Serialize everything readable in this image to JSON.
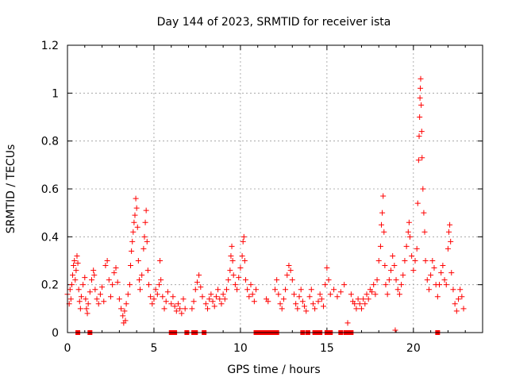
{
  "chart_data": {
    "type": "scatter",
    "title": "Day 144 of 2023, SRMTID for receiver ista",
    "xlabel": "GPS time / hours",
    "ylabel": "SRMTID / TECUs",
    "xlim": [
      0,
      24
    ],
    "ylim": [
      0,
      1.2
    ],
    "xticks": [
      0,
      5,
      10,
      15,
      20
    ],
    "yticks": [
      0,
      0.2,
      0.4,
      0.6,
      0.8,
      1,
      1.2
    ],
    "ytick_labels": [
      "0",
      "0.2",
      "0.4",
      "0.6",
      "0.8",
      "1",
      "1.2"
    ],
    "grid": true,
    "marker": "plus",
    "marker_color": "#ff0000",
    "series": [
      {
        "name": "SRMTID",
        "points": [
          [
            0.0,
            0.16
          ],
          [
            0.1,
            0.12
          ],
          [
            0.15,
            0.18
          ],
          [
            0.2,
            0.14
          ],
          [
            0.25,
            0.2
          ],
          [
            0.3,
            0.24
          ],
          [
            0.35,
            0.28
          ],
          [
            0.4,
            0.3
          ],
          [
            0.45,
            0.22
          ],
          [
            0.5,
            0.26
          ],
          [
            0.55,
            0.32
          ],
          [
            0.6,
            0.29
          ],
          [
            0.65,
            0.18
          ],
          [
            0.7,
            0.13
          ],
          [
            0.75,
            0.1
          ],
          [
            0.8,
            0.15
          ],
          [
            0.9,
            0.2
          ],
          [
            1.0,
            0.23
          ],
          [
            1.05,
            0.14
          ],
          [
            1.1,
            0.1
          ],
          [
            1.15,
            0.08
          ],
          [
            1.2,
            0.12
          ],
          [
            1.3,
            0.17
          ],
          [
            1.4,
            0.22
          ],
          [
            1.5,
            0.26
          ],
          [
            1.55,
            0.24
          ],
          [
            1.6,
            0.18
          ],
          [
            1.7,
            0.14
          ],
          [
            1.8,
            0.12
          ],
          [
            1.9,
            0.16
          ],
          [
            2.0,
            0.19
          ],
          [
            2.1,
            0.13
          ],
          [
            2.2,
            0.28
          ],
          [
            2.3,
            0.3
          ],
          [
            2.4,
            0.22
          ],
          [
            2.5,
            0.15
          ],
          [
            2.6,
            0.2
          ],
          [
            2.7,
            0.25
          ],
          [
            2.8,
            0.27
          ],
          [
            2.9,
            0.21
          ],
          [
            3.0,
            0.14
          ],
          [
            3.1,
            0.1
          ],
          [
            3.2,
            0.07
          ],
          [
            3.25,
            0.04
          ],
          [
            3.3,
            0.09
          ],
          [
            3.35,
            0.05
          ],
          [
            3.4,
            0.12
          ],
          [
            3.5,
            0.16
          ],
          [
            3.6,
            0.2
          ],
          [
            3.65,
            0.28
          ],
          [
            3.7,
            0.34
          ],
          [
            3.75,
            0.38
          ],
          [
            3.8,
            0.42
          ],
          [
            3.85,
            0.46
          ],
          [
            3.9,
            0.49
          ],
          [
            3.95,
            0.56
          ],
          [
            4.0,
            0.52
          ],
          [
            4.05,
            0.44
          ],
          [
            4.1,
            0.3
          ],
          [
            4.15,
            0.22
          ],
          [
            4.2,
            0.18
          ],
          [
            4.3,
            0.24
          ],
          [
            4.4,
            0.35
          ],
          [
            4.45,
            0.4
          ],
          [
            4.5,
            0.46
          ],
          [
            4.55,
            0.51
          ],
          [
            4.6,
            0.38
          ],
          [
            4.65,
            0.26
          ],
          [
            4.7,
            0.2
          ],
          [
            4.8,
            0.15
          ],
          [
            4.9,
            0.12
          ],
          [
            5.0,
            0.14
          ],
          [
            5.1,
            0.18
          ],
          [
            5.2,
            0.16
          ],
          [
            5.3,
            0.2
          ],
          [
            5.35,
            0.3
          ],
          [
            5.4,
            0.22
          ],
          [
            5.5,
            0.15
          ],
          [
            5.6,
            0.1
          ],
          [
            5.7,
            0.13
          ],
          [
            5.8,
            0.17
          ],
          [
            6.0,
            0.12
          ],
          [
            6.1,
            0.15
          ],
          [
            6.2,
            0.11
          ],
          [
            6.3,
            0.09
          ],
          [
            6.4,
            0.12
          ],
          [
            6.5,
            0.1
          ],
          [
            6.6,
            0.08
          ],
          [
            6.7,
            0.14
          ],
          [
            6.8,
            0.1
          ],
          [
            7.2,
            0.1
          ],
          [
            7.3,
            0.13
          ],
          [
            7.4,
            0.18
          ],
          [
            7.5,
            0.21
          ],
          [
            7.6,
            0.24
          ],
          [
            7.7,
            0.19
          ],
          [
            7.8,
            0.15
          ],
          [
            8.0,
            0.12
          ],
          [
            8.1,
            0.1
          ],
          [
            8.2,
            0.14
          ],
          [
            8.3,
            0.16
          ],
          [
            8.4,
            0.13
          ],
          [
            8.5,
            0.11
          ],
          [
            8.6,
            0.15
          ],
          [
            8.7,
            0.18
          ],
          [
            8.8,
            0.14
          ],
          [
            8.9,
            0.12
          ],
          [
            9.0,
            0.16
          ],
          [
            9.1,
            0.14
          ],
          [
            9.2,
            0.18
          ],
          [
            9.3,
            0.22
          ],
          [
            9.4,
            0.26
          ],
          [
            9.45,
            0.32
          ],
          [
            9.5,
            0.36
          ],
          [
            9.55,
            0.3
          ],
          [
            9.6,
            0.24
          ],
          [
            9.7,
            0.2
          ],
          [
            9.8,
            0.18
          ],
          [
            9.9,
            0.23
          ],
          [
            10.0,
            0.27
          ],
          [
            10.1,
            0.32
          ],
          [
            10.15,
            0.38
          ],
          [
            10.2,
            0.4
          ],
          [
            10.25,
            0.3
          ],
          [
            10.3,
            0.22
          ],
          [
            10.4,
            0.18
          ],
          [
            10.5,
            0.15
          ],
          [
            10.6,
            0.2
          ],
          [
            10.7,
            0.16
          ],
          [
            10.8,
            0.13
          ],
          [
            10.9,
            0.18
          ],
          [
            11.5,
            0.14
          ],
          [
            11.6,
            0.13
          ],
          [
            12.0,
            0.18
          ],
          [
            12.1,
            0.22
          ],
          [
            12.2,
            0.16
          ],
          [
            12.3,
            0.12
          ],
          [
            12.4,
            0.1
          ],
          [
            12.5,
            0.14
          ],
          [
            12.6,
            0.18
          ],
          [
            12.7,
            0.24
          ],
          [
            12.8,
            0.28
          ],
          [
            12.9,
            0.26
          ],
          [
            13.0,
            0.22
          ],
          [
            13.1,
            0.16
          ],
          [
            13.2,
            0.12
          ],
          [
            13.3,
            0.1
          ],
          [
            13.4,
            0.15
          ],
          [
            13.5,
            0.18
          ],
          [
            13.6,
            0.13
          ],
          [
            13.7,
            0.11
          ],
          [
            13.8,
            0.09
          ],
          [
            14.0,
            0.15
          ],
          [
            14.1,
            0.18
          ],
          [
            14.2,
            0.12
          ],
          [
            14.3,
            0.1
          ],
          [
            14.5,
            0.13
          ],
          [
            14.6,
            0.16
          ],
          [
            14.7,
            0.14
          ],
          [
            14.8,
            0.11
          ],
          [
            14.9,
            0.2
          ],
          [
            15.0,
            0.27
          ],
          [
            15.1,
            0.22
          ],
          [
            15.2,
            0.16
          ],
          [
            15.4,
            0.18
          ],
          [
            15.6,
            0.15
          ],
          [
            15.8,
            0.17
          ],
          [
            16.0,
            0.2
          ],
          [
            16.2,
            0.04
          ],
          [
            16.4,
            0.16
          ],
          [
            16.5,
            0.13
          ],
          [
            16.6,
            0.12
          ],
          [
            16.7,
            0.1
          ],
          [
            16.8,
            0.14
          ],
          [
            16.9,
            0.12
          ],
          [
            17.0,
            0.1
          ],
          [
            17.1,
            0.14
          ],
          [
            17.2,
            0.12
          ],
          [
            17.3,
            0.16
          ],
          [
            17.4,
            0.14
          ],
          [
            17.5,
            0.18
          ],
          [
            17.6,
            0.17
          ],
          [
            17.7,
            0.2
          ],
          [
            17.8,
            0.16
          ],
          [
            17.9,
            0.22
          ],
          [
            18.0,
            0.3
          ],
          [
            18.1,
            0.36
          ],
          [
            18.15,
            0.45
          ],
          [
            18.2,
            0.5
          ],
          [
            18.25,
            0.57
          ],
          [
            18.3,
            0.42
          ],
          [
            18.35,
            0.28
          ],
          [
            18.4,
            0.2
          ],
          [
            18.5,
            0.16
          ],
          [
            18.6,
            0.22
          ],
          [
            18.7,
            0.26
          ],
          [
            18.8,
            0.32
          ],
          [
            18.9,
            0.28
          ],
          [
            18.95,
            0.01
          ],
          [
            19.0,
            0.22
          ],
          [
            19.1,
            0.18
          ],
          [
            19.2,
            0.16
          ],
          [
            19.3,
            0.2
          ],
          [
            19.4,
            0.24
          ],
          [
            19.5,
            0.3
          ],
          [
            19.6,
            0.36
          ],
          [
            19.7,
            0.42
          ],
          [
            19.75,
            0.46
          ],
          [
            19.8,
            0.4
          ],
          [
            19.9,
            0.32
          ],
          [
            20.0,
            0.26
          ],
          [
            20.1,
            0.3
          ],
          [
            20.2,
            0.35
          ],
          [
            20.25,
            0.54
          ],
          [
            20.3,
            0.72
          ],
          [
            20.33,
            0.82
          ],
          [
            20.36,
            0.9
          ],
          [
            20.38,
            0.98
          ],
          [
            20.4,
            1.02
          ],
          [
            20.42,
            1.06
          ],
          [
            20.45,
            0.95
          ],
          [
            20.48,
            0.84
          ],
          [
            20.5,
            0.73
          ],
          [
            20.55,
            0.6
          ],
          [
            20.6,
            0.5
          ],
          [
            20.65,
            0.42
          ],
          [
            20.7,
            0.3
          ],
          [
            20.8,
            0.22
          ],
          [
            20.9,
            0.18
          ],
          [
            21.0,
            0.24
          ],
          [
            21.1,
            0.3
          ],
          [
            21.2,
            0.27
          ],
          [
            21.3,
            0.2
          ],
          [
            21.4,
            0.15
          ],
          [
            21.5,
            0.2
          ],
          [
            21.6,
            0.25
          ],
          [
            21.7,
            0.28
          ],
          [
            21.8,
            0.22
          ],
          [
            21.9,
            0.2
          ],
          [
            22.0,
            0.35
          ],
          [
            22.05,
            0.42
          ],
          [
            22.1,
            0.45
          ],
          [
            22.15,
            0.38
          ],
          [
            22.2,
            0.25
          ],
          [
            22.3,
            0.18
          ],
          [
            22.4,
            0.12
          ],
          [
            22.5,
            0.09
          ],
          [
            22.6,
            0.14
          ],
          [
            22.7,
            0.18
          ],
          [
            22.8,
            0.15
          ],
          [
            22.9,
            0.1
          ]
        ]
      }
    ],
    "zero_markers_x": [
      0.6,
      1.3,
      6.0,
      6.1,
      6.2,
      6.9,
      7.3,
      7.4,
      7.9,
      10.9,
      11.1,
      11.2,
      11.3,
      11.4,
      11.5,
      11.6,
      11.7,
      11.8,
      11.9,
      12.0,
      12.1,
      13.6,
      13.9,
      14.3,
      14.4,
      14.5,
      14.6,
      15.0,
      15.1,
      15.2,
      15.8,
      16.1,
      16.2,
      16.3,
      16.4,
      21.4
    ]
  }
}
